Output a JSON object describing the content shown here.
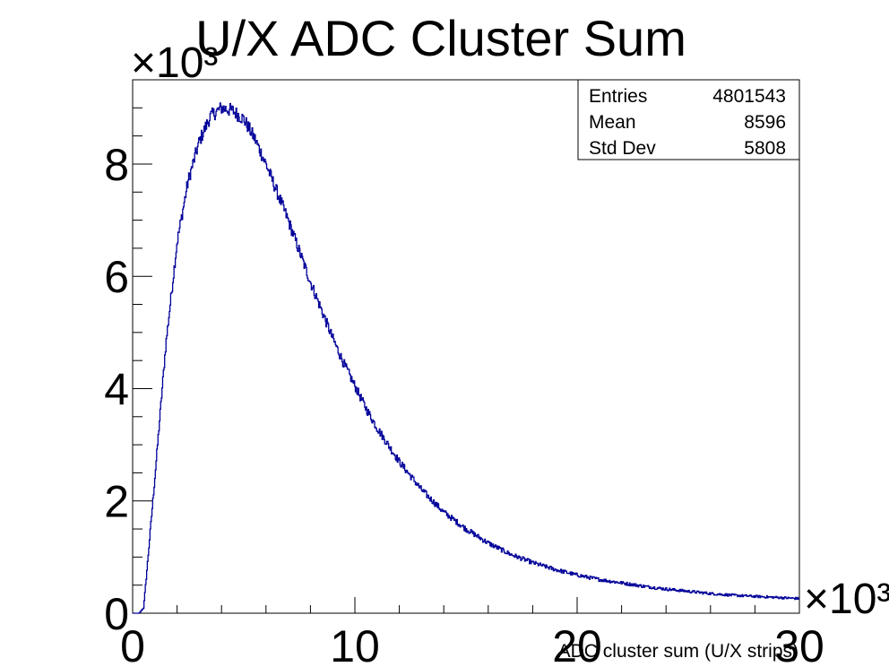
{
  "chart_data": {
    "type": "line",
    "title": "U/X ADC Cluster Sum",
    "xlabel": "ADC cluster sum (U/X strips)",
    "ylabel": "",
    "x_multiplier": "×10³",
    "y_multiplier": "×10³",
    "xlim": [
      0,
      30000
    ],
    "ylim": [
      0,
      9500
    ],
    "x_ticks": [
      0,
      10000,
      20000,
      30000
    ],
    "x_tick_labels": [
      "0",
      "10",
      "20",
      "30"
    ],
    "y_ticks": [
      0,
      2000,
      4000,
      6000,
      8000
    ],
    "y_tick_labels": [
      "0",
      "2",
      "4",
      "6",
      "8"
    ],
    "line_color": "#000099",
    "grid": false,
    "legend": "none",
    "stats": {
      "rows": [
        {
          "label": "Entries",
          "value": "4801543"
        },
        {
          "label": "Mean",
          "value": "8596"
        },
        {
          "label": "Std Dev",
          "value": "5808"
        }
      ]
    },
    "series": [
      {
        "x": [
          0,
          300,
          500,
          1000,
          1500,
          2000,
          2500,
          3000,
          3500,
          4000,
          4500,
          5000,
          5500,
          6000,
          6500,
          7000,
          7500,
          8000,
          8500,
          9000,
          9500,
          10000,
          10500,
          11000,
          12000,
          13000,
          14000,
          15000,
          16000,
          17000,
          18000,
          19000,
          20000,
          21000,
          22000,
          23000,
          24000,
          25000,
          26000,
          27000,
          28000,
          29000,
          30000
        ],
        "values": [
          0,
          0,
          100,
          2400,
          4800,
          6600,
          7700,
          8400,
          8850,
          9000,
          8950,
          8800,
          8450,
          8000,
          7500,
          7000,
          6450,
          5900,
          5400,
          4900,
          4450,
          4050,
          3650,
          3300,
          2700,
          2200,
          1800,
          1500,
          1250,
          1050,
          900,
          780,
          680,
          600,
          540,
          480,
          430,
          390,
          350,
          320,
          300,
          280,
          260
        ]
      }
    ]
  }
}
